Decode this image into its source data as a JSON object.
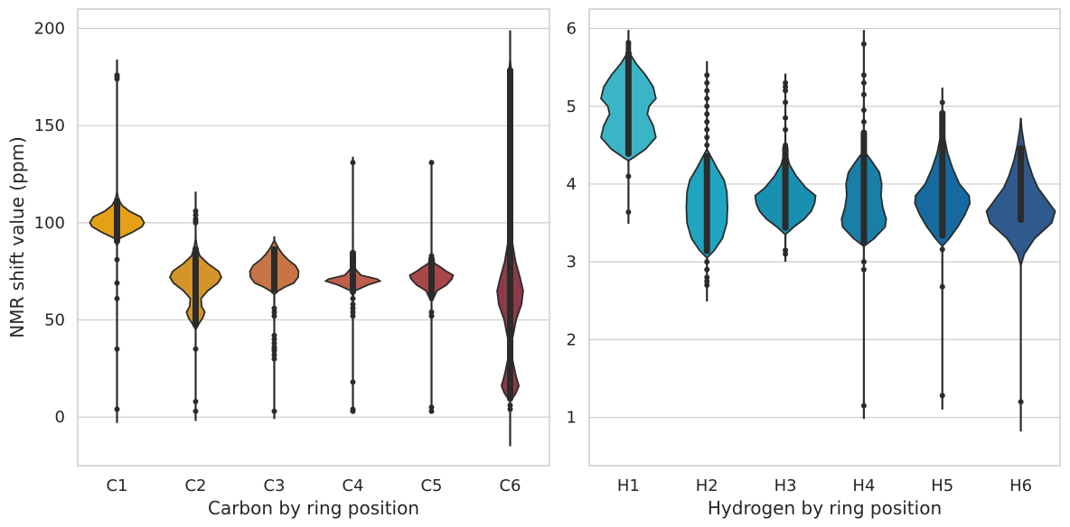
{
  "chart_data": [
    {
      "type": "violin",
      "title": "",
      "xlabel": "Carbon by ring position",
      "ylabel": "NMR shift value (ppm)",
      "ylim": [
        -25,
        210
      ],
      "yticks": [
        0,
        50,
        100,
        150,
        200
      ],
      "grid": true,
      "categories": [
        "C1",
        "C2",
        "C3",
        "C4",
        "C5",
        "C6"
      ],
      "series": [
        {
          "name": "C1",
          "color": "#e4a117",
          "min": -3,
          "max": 184,
          "core": [
            89,
            113
          ],
          "profile": [
            [
              88,
              0.0
            ],
            [
              92,
              0.1
            ],
            [
              95,
              0.55
            ],
            [
              98,
              0.92
            ],
            [
              100,
              1.0
            ],
            [
              103,
              0.88
            ],
            [
              106,
              0.45
            ],
            [
              109,
              0.18
            ],
            [
              112,
              0.06
            ],
            [
              116,
              0.0
            ]
          ],
          "points": [
            4,
            35,
            61,
            69,
            81,
            174,
            175,
            176
          ]
        },
        {
          "name": "C2",
          "color": "#d4942a",
          "min": -2,
          "max": 116,
          "core": [
            46,
            88
          ],
          "profile": [
            [
              45,
              0.0
            ],
            [
              48,
              0.12
            ],
            [
              51,
              0.26
            ],
            [
              54,
              0.34
            ],
            [
              57,
              0.22
            ],
            [
              61,
              0.2
            ],
            [
              65,
              0.45
            ],
            [
              69,
              0.82
            ],
            [
              72,
              0.95
            ],
            [
              75,
              0.85
            ],
            [
              79,
              0.45
            ],
            [
              83,
              0.15
            ],
            [
              87,
              0.06
            ],
            [
              92,
              0.0
            ]
          ],
          "points": [
            3,
            8,
            35,
            47,
            100,
            101,
            102,
            104,
            106
          ]
        },
        {
          "name": "C3",
          "color": "#c97445",
          "min": -1,
          "max": 93,
          "core": [
            64,
            88
          ],
          "profile": [
            [
              63,
              0.0
            ],
            [
              65,
              0.15
            ],
            [
              67,
              0.4
            ],
            [
              69,
              0.72
            ],
            [
              72,
              0.88
            ],
            [
              75,
              0.9
            ],
            [
              78,
              0.78
            ],
            [
              81,
              0.5
            ],
            [
              84,
              0.3
            ],
            [
              87,
              0.15
            ],
            [
              91,
              0.0
            ]
          ],
          "points": [
            3,
            30,
            32,
            34,
            35,
            36,
            38,
            40,
            42,
            52,
            54,
            56
          ]
        },
        {
          "name": "C4",
          "color": "#c05e4d",
          "min": 2,
          "max": 134,
          "core": [
            63,
            86
          ],
          "profile": [
            [
              62,
              0.0
            ],
            [
              65,
              0.08
            ],
            [
              68,
              0.55
            ],
            [
              70,
              1.0
            ],
            [
              71,
              0.9
            ],
            [
              73,
              0.3
            ],
            [
              76,
              0.1
            ],
            [
              79,
              0.06
            ],
            [
              83,
              0.02
            ],
            [
              87,
              0.0
            ]
          ],
          "points": [
            3,
            4,
            18,
            52,
            54,
            56,
            58,
            61,
            131
          ]
        },
        {
          "name": "C5",
          "color": "#a84848",
          "min": 2,
          "max": 132,
          "core": [
            61,
            83
          ],
          "profile": [
            [
              60,
              0.0
            ],
            [
              62,
              0.1
            ],
            [
              65,
              0.2
            ],
            [
              68,
              0.55
            ],
            [
              71,
              0.75
            ],
            [
              73,
              0.8
            ],
            [
              75,
              0.55
            ],
            [
              77,
              0.35
            ],
            [
              79,
              0.12
            ],
            [
              82,
              0.04
            ],
            [
              84,
              0.0
            ]
          ],
          "points": [
            3,
            5,
            52,
            54,
            61,
            83,
            131
          ]
        },
        {
          "name": "C6",
          "color": "#8c3a48",
          "min": -15,
          "max": 199,
          "core": [
            8,
            180
          ],
          "profile": [
            [
              8,
              0.0
            ],
            [
              12,
              0.2
            ],
            [
              16,
              0.32
            ],
            [
              22,
              0.2
            ],
            [
              30,
              0.08
            ],
            [
              40,
              0.08
            ],
            [
              50,
              0.22
            ],
            [
              58,
              0.42
            ],
            [
              65,
              0.48
            ],
            [
              72,
              0.36
            ],
            [
              80,
              0.2
            ],
            [
              90,
              0.08
            ],
            [
              105,
              0.04
            ],
            [
              130,
              0.02
            ],
            [
              160,
              0.02
            ],
            [
              172,
              0.05
            ],
            [
              176,
              0.06
            ],
            [
              180,
              0.03
            ],
            [
              184,
              0.0
            ]
          ],
          "points": [
            4,
            6,
            118,
            172,
            174,
            175,
            176,
            177,
            178
          ]
        }
      ]
    },
    {
      "type": "violin",
      "title": "",
      "xlabel": "Hydrogen by ring position",
      "ylabel": "",
      "ylim": [
        0.38,
        6.25
      ],
      "yticks": [
        1,
        2,
        3,
        4,
        5,
        6
      ],
      "grid": true,
      "categories": [
        "H1",
        "H2",
        "H3",
        "H4",
        "H5",
        "H6"
      ],
      "series": [
        {
          "name": "H1",
          "color": "#3ab5c6",
          "min": 3.49,
          "max": 5.98,
          "core": [
            4.35,
            5.72
          ],
          "profile": [
            [
              4.3,
              0.0
            ],
            [
              4.35,
              0.18
            ],
            [
              4.45,
              0.5
            ],
            [
              4.6,
              0.8
            ],
            [
              4.75,
              0.72
            ],
            [
              4.9,
              0.55
            ],
            [
              5.0,
              0.6
            ],
            [
              5.1,
              0.8
            ],
            [
              5.25,
              0.72
            ],
            [
              5.4,
              0.5
            ],
            [
              5.55,
              0.22
            ],
            [
              5.65,
              0.08
            ],
            [
              5.75,
              0.0
            ]
          ],
          "points": [
            3.64,
            4.1,
            5.72,
            5.75,
            5.78,
            5.8,
            5.82
          ]
        },
        {
          "name": "H2",
          "color": "#1fa5c0",
          "min": 2.49,
          "max": 5.58,
          "core": [
            3.1,
            4.4
          ],
          "profile": [
            [
              3.05,
              0.0
            ],
            [
              3.15,
              0.22
            ],
            [
              3.3,
              0.45
            ],
            [
              3.5,
              0.58
            ],
            [
              3.7,
              0.6
            ],
            [
              3.9,
              0.58
            ],
            [
              4.05,
              0.5
            ],
            [
              4.2,
              0.3
            ],
            [
              4.35,
              0.12
            ],
            [
              4.45,
              0.0
            ]
          ],
          "points": [
            2.7,
            2.75,
            2.8,
            2.9,
            3.0,
            4.5,
            4.6,
            4.7,
            4.8,
            4.9,
            5.0,
            5.1,
            5.2,
            5.3,
            5.4
          ]
        },
        {
          "name": "H3",
          "color": "#1890b0",
          "min": 3.0,
          "max": 5.42,
          "core": [
            3.4,
            4.5
          ],
          "profile": [
            [
              3.35,
              0.0
            ],
            [
              3.45,
              0.25
            ],
            [
              3.55,
              0.55
            ],
            [
              3.65,
              0.75
            ],
            [
              3.75,
              0.85
            ],
            [
              3.85,
              0.88
            ],
            [
              3.95,
              0.6
            ],
            [
              4.1,
              0.32
            ],
            [
              4.25,
              0.12
            ],
            [
              4.4,
              0.03
            ],
            [
              4.5,
              0.0
            ]
          ],
          "points": [
            3.1,
            3.15,
            4.5,
            4.7,
            4.85,
            5.05,
            5.2,
            5.25,
            5.3
          ]
        },
        {
          "name": "H4",
          "color": "#1a7fa6",
          "min": 0.98,
          "max": 5.98,
          "core": [
            3.2,
            4.7
          ],
          "profile": [
            [
              3.2,
              0.0
            ],
            [
              3.3,
              0.3
            ],
            [
              3.45,
              0.62
            ],
            [
              3.55,
              0.65
            ],
            [
              3.7,
              0.55
            ],
            [
              3.85,
              0.5
            ],
            [
              4.0,
              0.52
            ],
            [
              4.15,
              0.45
            ],
            [
              4.3,
              0.22
            ],
            [
              4.4,
              0.05
            ],
            [
              4.5,
              0.0
            ]
          ],
          "points": [
            1.15,
            2.9,
            3.0,
            4.8,
            4.95,
            5.15,
            5.3,
            5.4,
            5.8
          ]
        },
        {
          "name": "H5",
          "color": "#166aa0",
          "min": 1.1,
          "max": 5.24,
          "core": [
            3.3,
            4.95
          ],
          "profile": [
            [
              3.2,
              0.0
            ],
            [
              3.3,
              0.2
            ],
            [
              3.45,
              0.45
            ],
            [
              3.6,
              0.65
            ],
            [
              3.75,
              0.8
            ],
            [
              3.85,
              0.78
            ],
            [
              4.0,
              0.5
            ],
            [
              4.2,
              0.3
            ],
            [
              4.4,
              0.15
            ],
            [
              4.6,
              0.06
            ],
            [
              4.8,
              0.0
            ]
          ],
          "points": [
            1.28,
            2.68,
            3.16,
            4.6,
            4.7,
            4.8,
            4.9,
            5.05
          ]
        },
        {
          "name": "H6",
          "color": "#2e5a8e",
          "min": 0.82,
          "max": 4.85,
          "core": [
            3.5,
            4.5
          ],
          "profile": [
            [
              2.95,
              0.0
            ],
            [
              3.1,
              0.1
            ],
            [
              3.3,
              0.4
            ],
            [
              3.5,
              0.9
            ],
            [
              3.65,
              1.0
            ],
            [
              3.8,
              0.75
            ],
            [
              3.95,
              0.5
            ],
            [
              4.1,
              0.35
            ],
            [
              4.3,
              0.2
            ],
            [
              4.5,
              0.1
            ],
            [
              4.7,
              0.03
            ],
            [
              4.85,
              0.0
            ]
          ],
          "points": [
            1.2,
            3.55,
            3.6,
            3.7,
            3.8,
            3.9,
            4.1,
            4.2,
            4.3
          ]
        }
      ]
    }
  ]
}
